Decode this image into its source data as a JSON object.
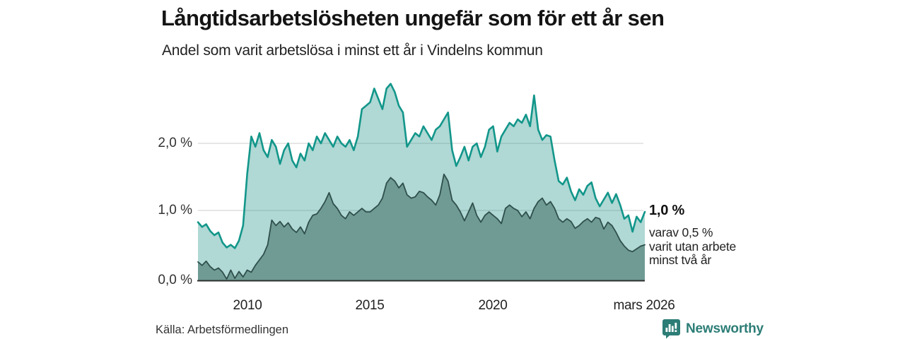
{
  "header": {
    "title": "Långtidsarbetslösheten ungefär som för ett år sen",
    "subtitle": "Andel som varit arbetslösa i minst ett år i Vindelns kommun"
  },
  "chart_data": {
    "type": "area",
    "title": "Långtidsarbetslösheten ungefär som för ett år sen",
    "subtitle": "Andel som varit arbetslösa i minst ett år i Vindelns kommun",
    "x_start_year": 2008.0,
    "x_end_label_year": 2026.17,
    "x_step_years": 0.1667,
    "ylim": [
      0,
      2.95
    ],
    "grid": "horizontal",
    "y_tick_labels": [
      "2,0 %",
      "1,0 %",
      "0,0 %"
    ],
    "y_tick_values": [
      2.0,
      1.0,
      0.0
    ],
    "x_tick_labels": [
      "2010",
      "2015",
      "2020",
      "mars 2026"
    ],
    "colors": {
      "total_line": "#12968a",
      "total_fill": "rgba(22,140,130,0.34)",
      "two_years_line": "#2f4f4b",
      "two_years_fill": "#6f9b94",
      "gridline": "#d8d8d8",
      "baseline": "#2f2f2f"
    },
    "series": [
      {
        "name": "Andel arbetslösa minst ett år",
        "values": [
          0.85,
          0.78,
          0.82,
          0.72,
          0.66,
          0.7,
          0.55,
          0.48,
          0.52,
          0.47,
          0.58,
          0.8,
          1.55,
          2.1,
          1.95,
          2.15,
          1.9,
          1.8,
          2.05,
          1.95,
          1.7,
          1.9,
          2.0,
          1.75,
          1.65,
          1.85,
          1.75,
          2.0,
          1.9,
          2.1,
          2.0,
          2.15,
          2.05,
          1.95,
          2.1,
          2.0,
          1.95,
          2.05,
          1.9,
          2.1,
          2.5,
          2.55,
          2.6,
          2.8,
          2.65,
          2.5,
          2.8,
          2.87,
          2.75,
          2.55,
          2.45,
          1.95,
          2.05,
          2.15,
          2.1,
          2.25,
          2.15,
          2.05,
          2.2,
          2.25,
          2.35,
          2.45,
          1.9,
          1.67,
          1.8,
          1.95,
          1.75,
          1.95,
          2.0,
          1.8,
          1.95,
          2.2,
          2.25,
          1.88,
          2.1,
          2.2,
          2.3,
          2.25,
          2.35,
          2.3,
          2.42,
          2.25,
          2.7,
          2.2,
          2.05,
          2.12,
          2.1,
          1.75,
          1.45,
          1.4,
          1.5,
          1.3,
          1.17,
          1.33,
          1.25,
          1.38,
          1.43,
          1.2,
          1.08,
          1.18,
          1.28,
          1.13,
          1.26,
          1.1,
          0.9,
          0.95,
          0.71,
          0.93,
          0.85,
          1.0
        ]
      },
      {
        "name": "Andel arbetslösa minst två år",
        "values": [
          0.27,
          0.22,
          0.28,
          0.2,
          0.15,
          0.18,
          0.12,
          0.02,
          0.15,
          0.03,
          0.13,
          0.05,
          0.15,
          0.12,
          0.22,
          0.3,
          0.38,
          0.52,
          0.88,
          0.8,
          0.86,
          0.78,
          0.84,
          0.75,
          0.7,
          0.78,
          0.68,
          0.85,
          0.95,
          0.97,
          1.05,
          1.15,
          1.28,
          1.12,
          1.05,
          0.95,
          0.9,
          1.0,
          0.95,
          1.0,
          1.05,
          1.0,
          1.0,
          1.05,
          1.1,
          1.2,
          1.42,
          1.5,
          1.45,
          1.35,
          1.42,
          1.25,
          1.2,
          1.22,
          1.3,
          1.28,
          1.22,
          1.17,
          1.1,
          1.25,
          1.55,
          1.45,
          1.17,
          1.1,
          1.0,
          0.87,
          1.0,
          1.13,
          0.95,
          0.85,
          0.95,
          1.0,
          0.95,
          0.9,
          0.83,
          1.05,
          1.1,
          1.05,
          1.02,
          0.93,
          1.0,
          0.9,
          1.05,
          1.15,
          1.2,
          1.1,
          1.15,
          1.05,
          0.9,
          0.85,
          0.9,
          0.86,
          0.76,
          0.8,
          0.86,
          0.9,
          0.85,
          0.92,
          0.9,
          0.75,
          0.85,
          0.8,
          0.7,
          0.58,
          0.5,
          0.44,
          0.42,
          0.46,
          0.5,
          0.52
        ]
      }
    ],
    "end_labels": {
      "primary": "1,0 %",
      "secondary_lines": [
        "varav 0,5 %",
        "varit utan arbete",
        "minst två år"
      ]
    }
  },
  "footer": {
    "source": "Källa: Arbetsförmedlingen",
    "brand": "Newsworthy"
  }
}
